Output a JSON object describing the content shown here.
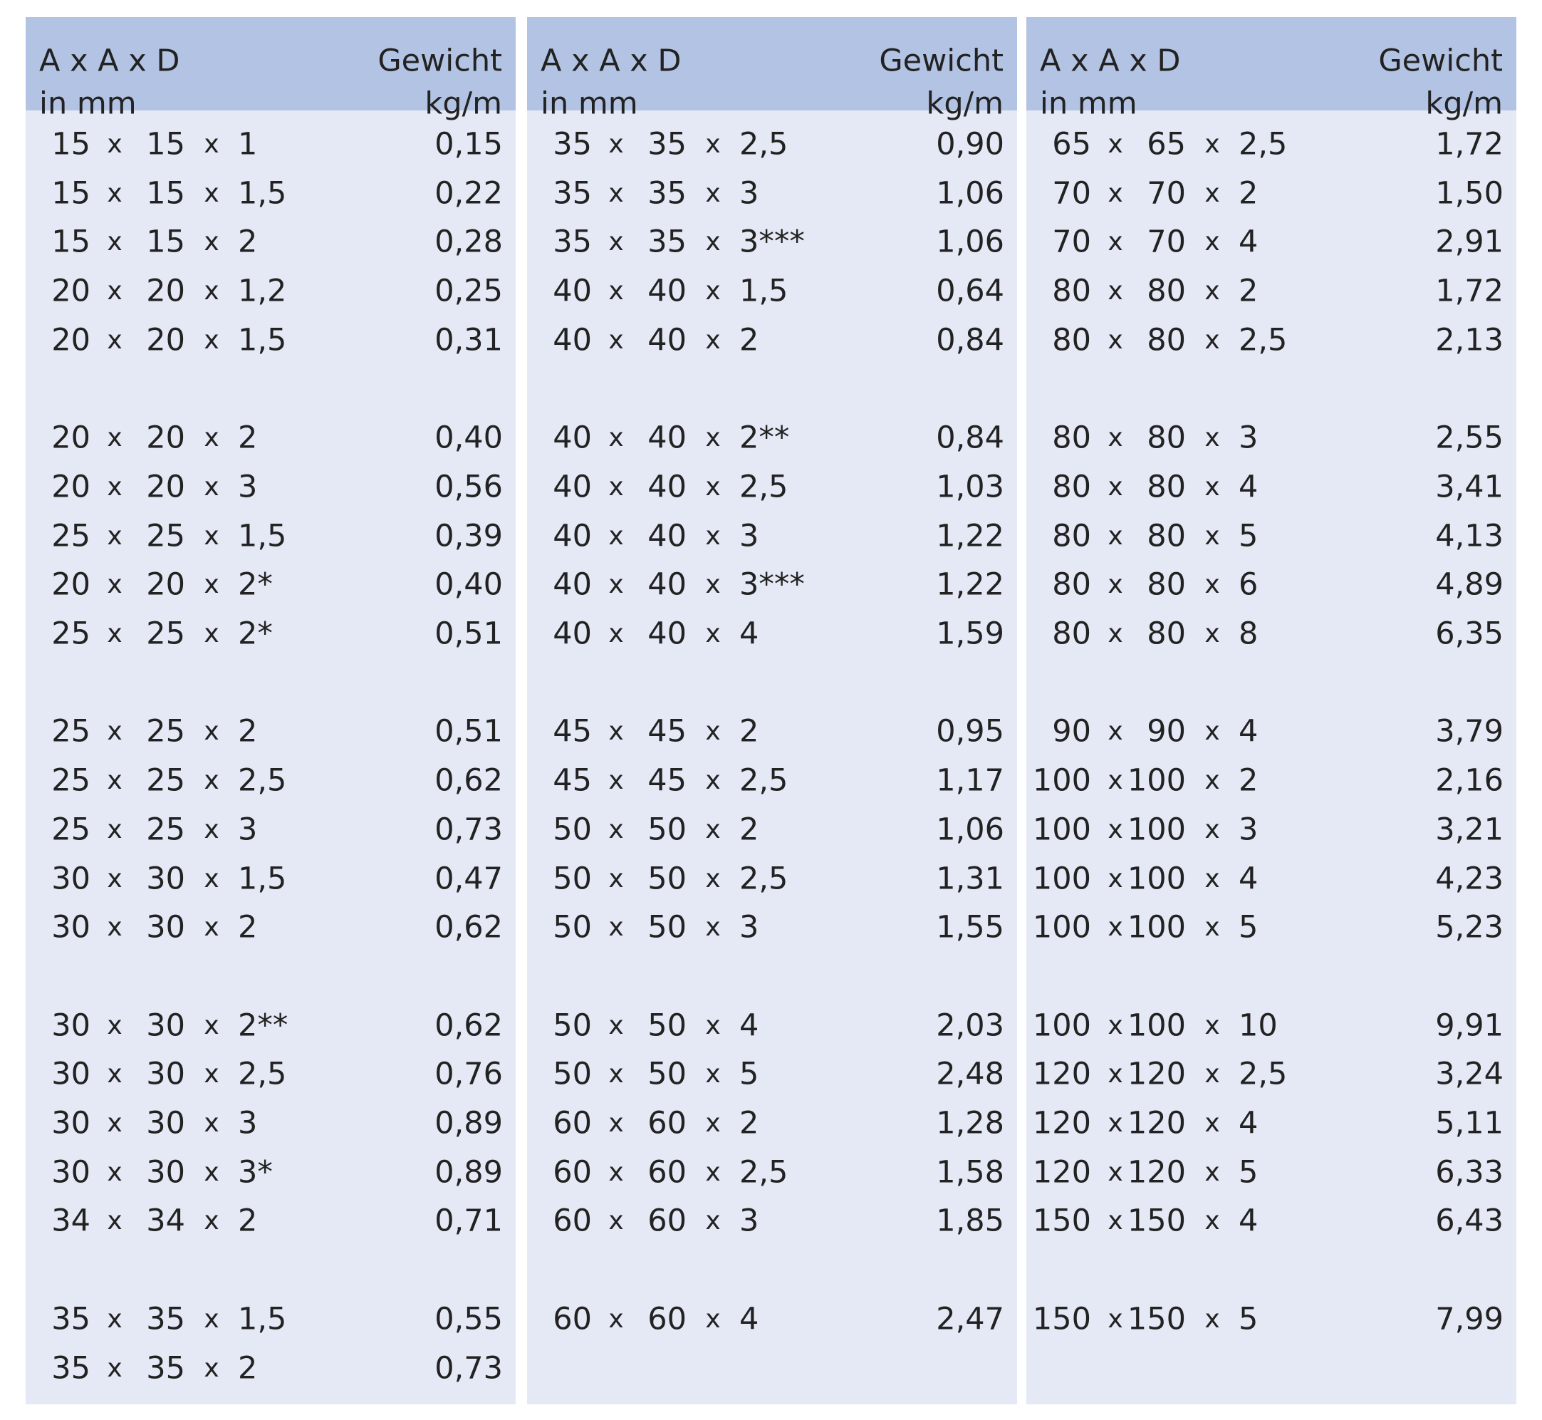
{
  "separator": "x",
  "panels": [
    {
      "header": {
        "dims": "A x A x D",
        "dims_unit": "in mm",
        "weight": "Gewicht",
        "weight_unit": "kg/m"
      },
      "groups": [
        [
          [
            "15",
            "15",
            "1",
            "0,15"
          ],
          [
            "15",
            "15",
            "1,5",
            "0,22"
          ],
          [
            "15",
            "15",
            "2",
            "0,28"
          ],
          [
            "20",
            "20",
            "1,2",
            "0,25"
          ],
          [
            "20",
            "20",
            "1,5",
            "0,31"
          ]
        ],
        [
          [
            "20",
            "20",
            "2",
            "0,40"
          ],
          [
            "20",
            "20",
            "3",
            "0,56"
          ],
          [
            "25",
            "25",
            "1,5",
            "0,39"
          ],
          [
            "20",
            "20",
            "2*",
            "0,40"
          ],
          [
            "25",
            "25",
            "2*",
            "0,51"
          ]
        ],
        [
          [
            "25",
            "25",
            "2",
            "0,51"
          ],
          [
            "25",
            "25",
            "2,5",
            "0,62"
          ],
          [
            "25",
            "25",
            "3",
            "0,73"
          ],
          [
            "30",
            "30",
            "1,5",
            "0,47"
          ],
          [
            "30",
            "30",
            "2",
            "0,62"
          ]
        ],
        [
          [
            "30",
            "30",
            "2**",
            "0,62"
          ],
          [
            "30",
            "30",
            "2,5",
            "0,76"
          ],
          [
            "30",
            "30",
            "3",
            "0,89"
          ],
          [
            "30",
            "30",
            "3*",
            "0,89"
          ],
          [
            "34",
            "34",
            "2",
            "0,71"
          ]
        ],
        [
          [
            "35",
            "35",
            "1,5",
            "0,55"
          ],
          [
            "35",
            "35",
            "2",
            "0,73"
          ]
        ]
      ]
    },
    {
      "header": {
        "dims": "A x A x D",
        "dims_unit": "in mm",
        "weight": "Gewicht",
        "weight_unit": "kg/m"
      },
      "groups": [
        [
          [
            "35",
            "35",
            "2,5",
            "0,90"
          ],
          [
            "35",
            "35",
            "3",
            "1,06"
          ],
          [
            "35",
            "35",
            "3***",
            "1,06"
          ],
          [
            "40",
            "40",
            "1,5",
            "0,64"
          ],
          [
            "40",
            "40",
            "2",
            "0,84"
          ]
        ],
        [
          [
            "40",
            "40",
            "2**",
            "0,84"
          ],
          [
            "40",
            "40",
            "2,5",
            "1,03"
          ],
          [
            "40",
            "40",
            "3",
            "1,22"
          ],
          [
            "40",
            "40",
            "3***",
            "1,22"
          ],
          [
            "40",
            "40",
            "4",
            "1,59"
          ]
        ],
        [
          [
            "45",
            "45",
            "2",
            "0,95"
          ],
          [
            "45",
            "45",
            "2,5",
            "1,17"
          ],
          [
            "50",
            "50",
            "2",
            "1,06"
          ],
          [
            "50",
            "50",
            "2,5",
            "1,31"
          ],
          [
            "50",
            "50",
            "3",
            "1,55"
          ]
        ],
        [
          [
            "50",
            "50",
            "4",
            "2,03"
          ],
          [
            "50",
            "50",
            "5",
            "2,48"
          ],
          [
            "60",
            "60",
            "2",
            "1,28"
          ],
          [
            "60",
            "60",
            "2,5",
            "1,58"
          ],
          [
            "60",
            "60",
            "3",
            "1,85"
          ]
        ],
        [
          [
            "60",
            "60",
            "4",
            "2,47"
          ]
        ]
      ]
    },
    {
      "header": {
        "dims": "A x A x D",
        "dims_unit": "in mm",
        "weight": "Gewicht",
        "weight_unit": "kg/m"
      },
      "groups": [
        [
          [
            "65",
            "65",
            "2,5",
            "1,72"
          ],
          [
            "70",
            "70",
            "2",
            "1,50"
          ],
          [
            "70",
            "70",
            "4",
            "2,91"
          ],
          [
            "80",
            "80",
            "2",
            "1,72"
          ],
          [
            "80",
            "80",
            "2,5",
            "2,13"
          ]
        ],
        [
          [
            "80",
            "80",
            "3",
            "2,55"
          ],
          [
            "80",
            "80",
            "4",
            "3,41"
          ],
          [
            "80",
            "80",
            "5",
            "4,13"
          ],
          [
            "80",
            "80",
            "6",
            "4,89"
          ],
          [
            "80",
            "80",
            "8",
            "6,35"
          ]
        ],
        [
          [
            "90",
            "90",
            "4",
            "3,79"
          ],
          [
            "100",
            "100",
            "2",
            "2,16"
          ],
          [
            "100",
            "100",
            "3",
            "3,21"
          ],
          [
            "100",
            "100",
            "4",
            "4,23"
          ],
          [
            "100",
            "100",
            "5",
            "5,23"
          ]
        ],
        [
          [
            "100",
            "100",
            "10",
            "9,91"
          ],
          [
            "120",
            "120",
            "2,5",
            "3,24"
          ],
          [
            "120",
            "120",
            "4",
            "5,11"
          ],
          [
            "120",
            "120",
            "5",
            "6,33"
          ],
          [
            "150",
            "150",
            "4",
            "6,43"
          ]
        ],
        [
          [
            "150",
            "150",
            "5",
            "7,99"
          ]
        ]
      ]
    }
  ]
}
